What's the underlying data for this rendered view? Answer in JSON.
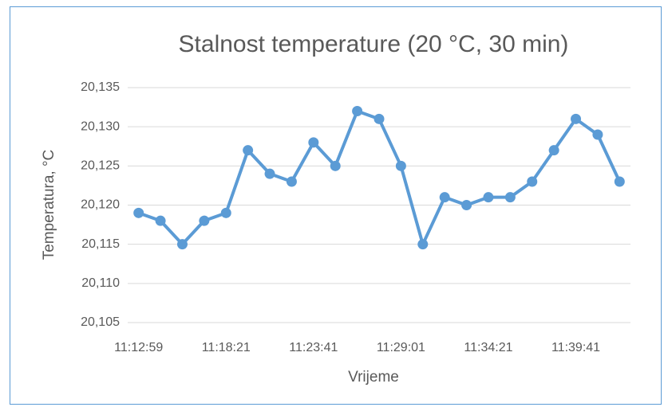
{
  "chart_data": {
    "type": "line",
    "title": "Stalnost temperature (20 °C, 30 min)",
    "x_label": "Vrijeme",
    "y_label": "Temperatura, °C",
    "categories": [
      "11:12:59",
      null,
      null,
      null,
      "11:18:21",
      null,
      null,
      null,
      "11:23:41",
      null,
      null,
      null,
      "11:29:01",
      null,
      null,
      null,
      "11:34:21",
      null,
      null,
      null,
      "11:39:41",
      null,
      null
    ],
    "series": [
      {
        "name": "Temperatura",
        "color": "#5b9bd5",
        "values": [
          20.119,
          20.118,
          20.115,
          20.118,
          20.119,
          20.127,
          20.124,
          20.123,
          20.128,
          20.125,
          20.132,
          20.131,
          20.125,
          20.115,
          20.121,
          20.12,
          20.121,
          20.121,
          20.123,
          20.127,
          20.131,
          20.129,
          20.123
        ]
      }
    ],
    "ylim": [
      20.105,
      20.135
    ],
    "yticks": [
      {
        "value": 20.105,
        "label": "20,105"
      },
      {
        "value": 20.11,
        "label": "20,110"
      },
      {
        "value": 20.115,
        "label": "20,115"
      },
      {
        "value": 20.12,
        "label": "20,120"
      },
      {
        "value": 20.125,
        "label": "20,125"
      },
      {
        "value": 20.13,
        "label": "20,130"
      },
      {
        "value": 20.135,
        "label": "20,135"
      }
    ],
    "grid": true
  }
}
